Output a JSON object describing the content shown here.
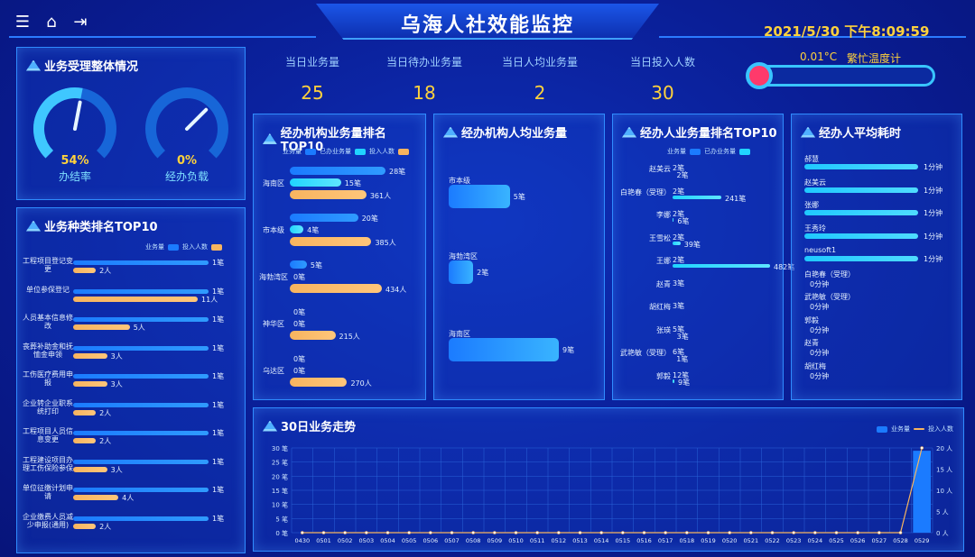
{
  "header": {
    "title": "乌海人社效能监控",
    "datetime": "2021/5/30 下午8:09:59",
    "icons": [
      "menu-icon",
      "home-icon",
      "exit-icon"
    ]
  },
  "stats": [
    {
      "label": "当日业务量",
      "value": "25"
    },
    {
      "label": "当日待办业务量",
      "value": "18"
    },
    {
      "label": "当日人均业务量",
      "value": "2"
    },
    {
      "label": "当日投入人数",
      "value": "30"
    }
  ],
  "thermometer": {
    "temp": "0.01°C",
    "label": "繁忙温度计"
  },
  "overall": {
    "title": "业务受理整体情况",
    "gauges": [
      {
        "value": "54%",
        "label": "办结率",
        "percent": 54
      },
      {
        "value": "0%",
        "label": "经办负载",
        "percent": 0
      }
    ]
  },
  "type_top": {
    "title": "业务种类排名TOP10",
    "legend": {
      "blue": "业务量",
      "orange": "投入人数"
    },
    "rows": [
      {
        "name": "工程项目登记变更",
        "a": "1笔",
        "b": "2人",
        "bv": 2
      },
      {
        "name": "单位参保登记",
        "a": "1笔",
        "b": "11人",
        "bv": 11
      },
      {
        "name": "人员基本信息修改",
        "a": "1笔",
        "b": "5人",
        "bv": 5
      },
      {
        "name": "丧葬补助金和抚恤金申领",
        "a": "1笔",
        "b": "3人",
        "bv": 3
      },
      {
        "name": "工伤医疗费用申报",
        "a": "1笔",
        "b": "3人",
        "bv": 3
      },
      {
        "name": "企业转企业职系统打印",
        "a": "1笔",
        "b": "2人",
        "bv": 2
      },
      {
        "name": "工程项目人员信息变更",
        "a": "1笔",
        "b": "2人",
        "bv": 2
      },
      {
        "name": "工程建设项目办理工伤保险参保",
        "a": "1笔",
        "b": "3人",
        "bv": 3
      },
      {
        "name": "单位征缴计划申请",
        "a": "1笔",
        "b": "4人",
        "bv": 4
      },
      {
        "name": "企业缴费人员减少申报(通用)",
        "a": "1笔",
        "b": "2人",
        "bv": 2
      }
    ]
  },
  "org_top": {
    "title": "经办机构业务量排名TOP10",
    "legend": {
      "blue": "业务量",
      "cyan": "已办业务量",
      "orange": "投入人数"
    },
    "rows": [
      {
        "name": "海南区",
        "a": "28笔",
        "av": 28,
        "c": "15笔",
        "cv": 15,
        "b": "361人",
        "bv": 361
      },
      {
        "name": "市本级",
        "a": "20笔",
        "av": 20,
        "c": "4笔",
        "cv": 4,
        "b": "385人",
        "bv": 385
      },
      {
        "name": "海勃湾区",
        "a": "5笔",
        "av": 5,
        "c": "0笔",
        "cv": 0,
        "b": "434人",
        "bv": 434
      },
      {
        "name": "神华区",
        "a": "0笔",
        "av": 0,
        "c": "0笔",
        "cv": 0,
        "b": "215人",
        "bv": 215
      },
      {
        "name": "乌达区",
        "a": "0笔",
        "av": 0,
        "c": "0笔",
        "cv": 0,
        "b": "270人",
        "bv": 270
      }
    ]
  },
  "org_avg": {
    "title": "经办机构人均业务量",
    "rows": [
      {
        "name": "市本级",
        "value": "5笔",
        "v": 5
      },
      {
        "name": "海勃湾区",
        "value": "2笔",
        "v": 2
      },
      {
        "name": "海南区",
        "value": "9笔",
        "v": 9
      }
    ]
  },
  "staff_top": {
    "title": "经办人业务量排名TOP10",
    "legend": {
      "blue": "业务量",
      "cyan": "已办业务量"
    },
    "rows": [
      {
        "name": "赵美云",
        "a": "2笔",
        "c": "2笔",
        "cv": 2
      },
      {
        "name": "白艳春（受理）",
        "a": "2笔",
        "c": "241笔",
        "cv": 241
      },
      {
        "name": "李娜",
        "a": "2笔",
        "c": "6笔",
        "cv": 6
      },
      {
        "name": "王雪松",
        "a": "2笔",
        "c": "39笔",
        "cv": 39
      },
      {
        "name": "王娜",
        "a": "2笔",
        "c": "482笔",
        "cv": 482
      },
      {
        "name": "赵青",
        "a": "3笔",
        "c": "",
        "cv": 0
      },
      {
        "name": "胡红梅",
        "a": "3笔",
        "c": "",
        "cv": 0
      },
      {
        "name": "张瑛",
        "a": "5笔",
        "c": "3笔",
        "cv": 3
      },
      {
        "name": "武艳敏（受理）",
        "a": "6笔",
        "c": "1笔",
        "cv": 1
      },
      {
        "name": "郭毅",
        "a": "12笔",
        "c": "9笔",
        "cv": 9
      }
    ]
  },
  "staff_time": {
    "title": "经办人平均耗时",
    "rows": [
      {
        "name": "郝慧",
        "value": "1分钟",
        "v": 1
      },
      {
        "name": "赵美云",
        "value": "1分钟",
        "v": 1
      },
      {
        "name": "张娜",
        "value": "1分钟",
        "v": 1
      },
      {
        "name": "王秀玲",
        "value": "1分钟",
        "v": 1
      },
      {
        "name": "neusoft1",
        "value": "1分钟",
        "v": 1
      },
      {
        "name": "白艳春（受理）",
        "value": "0分钟",
        "v": 0
      },
      {
        "name": "武艳敏（受理）",
        "value": "0分钟",
        "v": 0
      },
      {
        "name": "郭毅",
        "value": "0分钟",
        "v": 0
      },
      {
        "name": "赵青",
        "value": "0分钟",
        "v": 0
      },
      {
        "name": "胡红梅",
        "value": "0分钟",
        "v": 0
      }
    ]
  },
  "trend": {
    "title": "30日业务走势",
    "legend": {
      "blue": "业务量",
      "orange": "投入人数"
    }
  },
  "chart_data": {
    "type": "bar",
    "title": "30日业务走势",
    "categories": [
      "0430",
      "0501",
      "0502",
      "0503",
      "0504",
      "0505",
      "0506",
      "0507",
      "0508",
      "0509",
      "0510",
      "0511",
      "0512",
      "0513",
      "0514",
      "0515",
      "0516",
      "0517",
      "0518",
      "0519",
      "0520",
      "0521",
      "0522",
      "0523",
      "0524",
      "0525",
      "0526",
      "0527",
      "0528",
      "0529"
    ],
    "series": [
      {
        "name": "业务量",
        "kind": "bar",
        "axis": "left",
        "values": [
          0,
          0,
          0,
          0,
          0,
          0,
          0,
          0,
          0,
          0,
          0,
          0,
          0,
          0,
          0,
          0,
          0,
          0,
          0,
          0,
          0,
          0,
          0,
          0,
          0,
          0,
          0,
          0,
          0,
          29
        ]
      },
      {
        "name": "投入人数",
        "kind": "line",
        "axis": "right",
        "values": [
          0,
          0,
          0,
          0,
          0,
          0,
          0,
          0,
          0,
          0,
          0,
          0,
          0,
          0,
          0,
          0,
          0,
          0,
          0,
          0,
          0,
          0,
          0,
          0,
          0,
          0,
          0,
          0,
          0,
          20
        ]
      }
    ],
    "y_left": {
      "ticks": [
        "0 笔",
        "5 笔",
        "10 笔",
        "15 笔",
        "20 笔",
        "25 笔",
        "30 笔"
      ],
      "range": [
        0,
        30
      ]
    },
    "y_right": {
      "ticks": [
        "0 人",
        "5 人",
        "10 人",
        "15 人",
        "20 人"
      ],
      "range": [
        0,
        20
      ]
    },
    "legend_placement": "top-right",
    "colors": {
      "bar": "#1b7bff",
      "line": "#f7b45f"
    }
  }
}
